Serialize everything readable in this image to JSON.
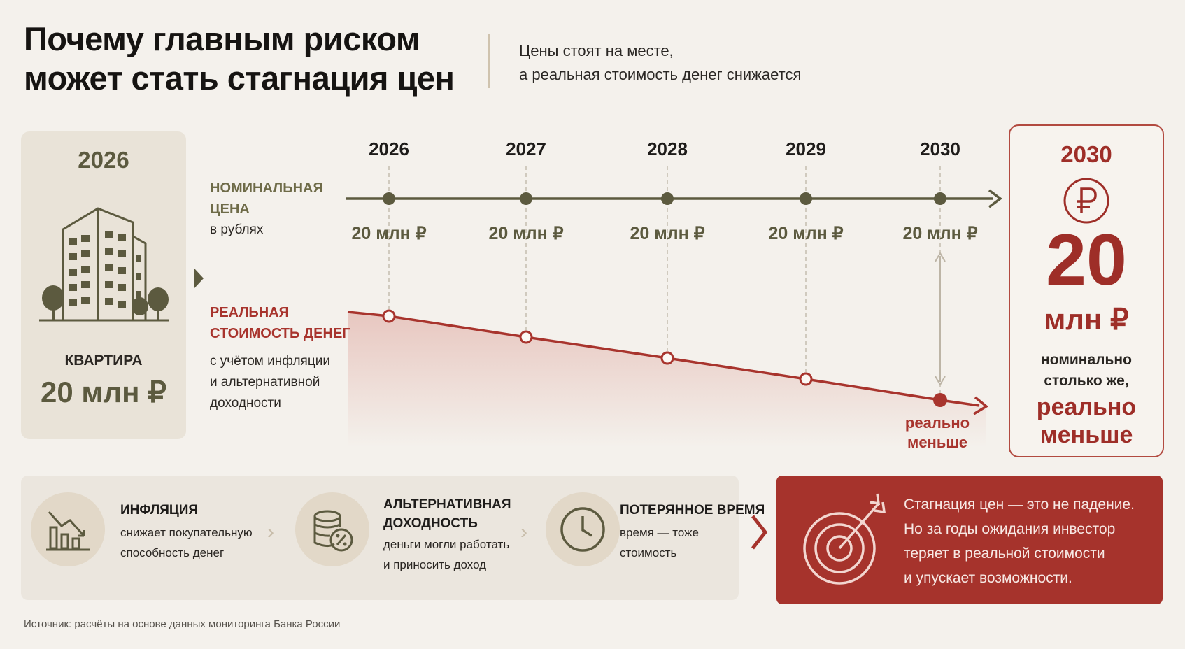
{
  "title": {
    "line1": "Почему главным риском",
    "line2": "может стать стагнация цен"
  },
  "subtitle": {
    "line1": "Цены стоят на месте,",
    "line2": "а реальная стоимость денег снижается"
  },
  "left_card": {
    "year": "2026",
    "label": "КВАРТИРА",
    "price": "20 млн ₽"
  },
  "nominal_label": {
    "line1": "НОМИНАЛЬНАЯ",
    "line2": "ЦЕНА",
    "sub": "в рублях"
  },
  "real_label": {
    "line1": "РЕАЛЬНАЯ",
    "line2": "СТОИМОСТЬ ДЕНЕГ",
    "sub1": "с учётом инфляции",
    "sub2": "и альтернативной",
    "sub3": "доходности"
  },
  "chart_data": {
    "type": "line",
    "x": [
      "2026",
      "2027",
      "2028",
      "2029",
      "2030"
    ],
    "series": [
      {
        "name": "НОМИНАЛЬНАЯ ЦЕНА",
        "values": [
          20,
          20,
          20,
          20,
          20
        ],
        "labels": [
          "20 млн ₽",
          "20 млн ₽",
          "20 млн ₽",
          "20 млн ₽",
          "20 млн ₽"
        ]
      },
      {
        "name": "РЕАЛЬНАЯ СТОИМОСТЬ ДЕНЕГ",
        "relative_level": [
          1.0,
          0.93,
          0.86,
          0.79,
          0.72
        ]
      }
    ],
    "annotation": {
      "line1": "реально",
      "line2": "меньше"
    },
    "colors": {
      "nominal": "#5c5a3f",
      "real": "#a8342d"
    }
  },
  "right_card": {
    "year": "2030",
    "big_value": "20",
    "unit": "млн ₽",
    "note1": "номинально",
    "note2": "столько же,",
    "strong1": "реально",
    "strong2": "меньше"
  },
  "factors": [
    {
      "icon": "chart-down-icon",
      "title1": "ИНФЛЯЦИЯ",
      "title2": "",
      "desc1": "снижает покупательную",
      "desc2": "способность денег"
    },
    {
      "icon": "coins-percent-icon",
      "title1": "АЛЬТЕРНАТИВНАЯ",
      "title2": "ДОХОДНОСТЬ",
      "desc1": "деньги могли работать",
      "desc2": "и приносить доход"
    },
    {
      "icon": "clock-icon",
      "title1": "ПОТЕРЯННОЕ ВРЕМЯ",
      "title2": "",
      "desc1": "время — тоже",
      "desc2": "стоимость"
    }
  ],
  "conclusion": {
    "icon": "target-icon",
    "line1": "Стагнация цен — это не падение.",
    "line2": "Но за годы ожидания инвестор",
    "line3": "теряет в реальной стоимости",
    "line4": "и упускает возможности."
  },
  "source": "Источник: расчёты на основе данных мониторинга Банка России",
  "colors": {
    "accent_red": "#a6332c",
    "olive": "#5c5a3f",
    "background": "#f4f1ec"
  }
}
